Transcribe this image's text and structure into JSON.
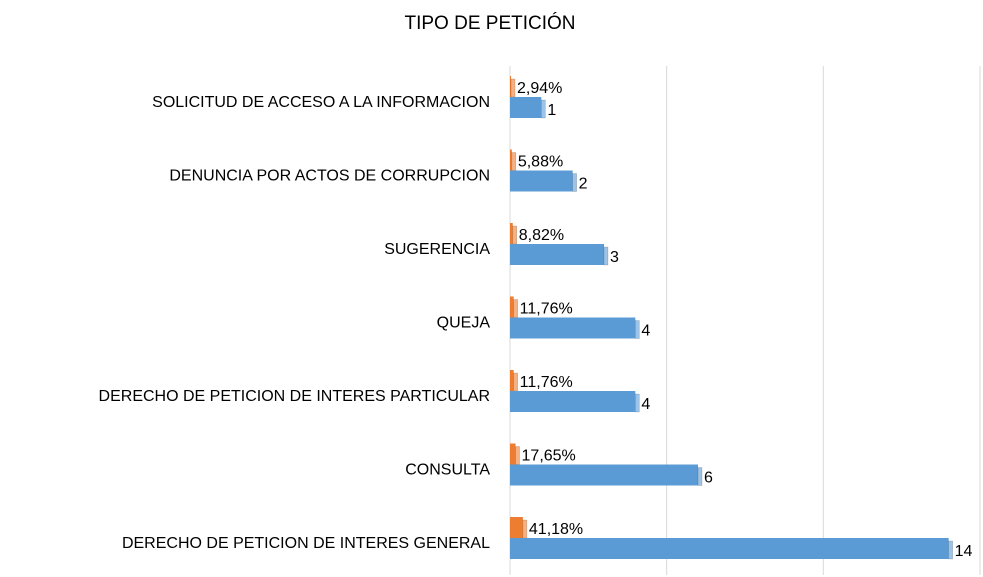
{
  "chart_data": {
    "type": "hbar",
    "title": "TIPO DE PETICIÓN",
    "categories": [
      "SOLICITUD DE ACCESO A LA INFORMACION",
      "DENUNCIA POR ACTOS DE CORRUPCION",
      "SUGERENCIA",
      "QUEJA",
      "DERECHO DE PETICION DE INTERES PARTICULAR",
      "CONSULTA",
      "DERECHO DE PETICION DE INTERES GENERAL"
    ],
    "series": [
      {
        "color": "#ed7d31",
        "values": [
          0.0294,
          0.0588,
          0.0882,
          0.1176,
          0.1176,
          0.1765,
          0.4118
        ],
        "value_labels": [
          "2,94%",
          "5,88%",
          "8,82%",
          "11,76%",
          "11,76%",
          "17,65%",
          "41,18%"
        ]
      },
      {
        "color": "#5b9bd5",
        "values": [
          1,
          2,
          3,
          4,
          4,
          6,
          14
        ]
      }
    ],
    "xlim": [
      0,
      15
    ],
    "xticks": [
      0,
      5,
      10,
      15
    ],
    "grid": true
  }
}
